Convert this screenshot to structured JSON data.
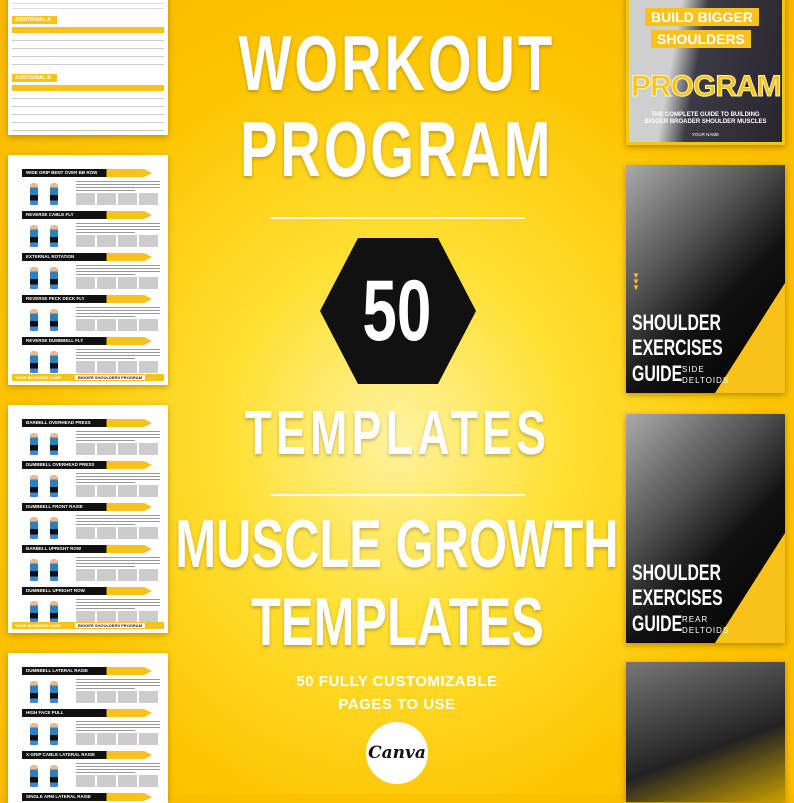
{
  "headline": {
    "line1": "WORKOUT",
    "line2": "PROGRAM",
    "count": "50",
    "line3": "TEMPLATES",
    "line4": "MUSCLE GROWTH",
    "line5": "TEMPLATES",
    "tagline1": "50 FULLY CUSTOMIZABLE",
    "tagline2": "PAGES TO USE",
    "canva_logo": "Canva"
  },
  "colors": {
    "accent": "#f9c21a",
    "dark": "#111111"
  },
  "table_page": {
    "sections": [
      "ADDITIONAL A",
      "ADDITIONAL B"
    ]
  },
  "pages": [
    {
      "exercises": [
        "WIDE GRIP BENT OVER BB ROW",
        "REVERSE CABLE FLY",
        "EXTERNAL ROTATION",
        "REVERSE PECK DECK FLY",
        "REVERSE DUMBBELL FLY"
      ],
      "footer_left": "YOUR BUSINESS NAME",
      "footer_right": "BIGGER SHOULDERS PROGRAM"
    },
    {
      "exercises": [
        "BARBELL OVERHEAD PRESS",
        "DUMBBELL OVERHEAD PRESS",
        "DUMBBELL FRONT RAISE",
        "BARBELL UPRIGHT ROW",
        "DUMBBELL UPRIGHT ROW"
      ],
      "footer_left": "YOUR BUSINESS NAME",
      "footer_right": "BIGGER SHOULDERS PROGRAM"
    },
    {
      "exercises": [
        "DUMBBELL LATERAL RAISE",
        "HIGH FACE PULL",
        "X-GRIP CABLE LATERAL RAISE",
        "SINGLE ARM LATERAL RAISE"
      ]
    }
  ],
  "covers": {
    "program": {
      "line1": "BUILD BIGGER",
      "line2": "SHOULDERS",
      "title": "PROGRAM",
      "subtitle1": "THE COMPLETE GUIDE TO BUILDING",
      "subtitle2": "BIGGER BROADER SHOULDER MUSCLES",
      "author": "YOUR NAME"
    },
    "side": {
      "t1": "SHOULDER",
      "t2": "EXERCISES",
      "t3": "GUIDE",
      "s1": "SIDE",
      "s2": "DELTOIDS"
    },
    "rear": {
      "t1": "SHOULDER",
      "t2": "EXERCISES",
      "t3": "GUIDE",
      "s1": "REAR",
      "s2": "DELTOIDS"
    }
  }
}
